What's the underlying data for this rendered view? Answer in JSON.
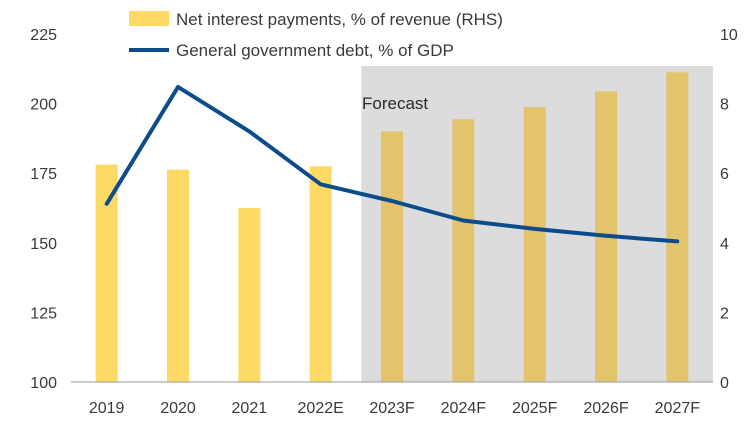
{
  "chart_data": {
    "type": "bar+line",
    "categories": [
      "2019",
      "2020",
      "2021",
      "2022E",
      "2023F",
      "2024F",
      "2025F",
      "2026F",
      "2027F"
    ],
    "series": [
      {
        "name": "Net interest payments, % of revenue (RHS)",
        "kind": "bar",
        "axis": "right",
        "color": "#FFD966",
        "values": [
          6.25,
          6.1,
          5.0,
          6.2,
          7.2,
          7.55,
          7.9,
          8.35,
          8.9
        ]
      },
      {
        "name": "General government debt, % of GDP",
        "kind": "line",
        "axis": "left",
        "color": "#0D4C8B",
        "values": [
          164,
          206,
          190,
          171,
          165,
          158,
          155,
          152.5,
          150.5
        ]
      }
    ],
    "left_axis": {
      "min": 100,
      "max": 225,
      "ticks": [
        "100",
        "125",
        "150",
        "175",
        "200",
        "225"
      ]
    },
    "right_axis": {
      "min": 0,
      "max": 10,
      "ticks": [
        "0",
        "2",
        "4",
        "6",
        "8",
        "10"
      ]
    },
    "forecast": {
      "label": "Forecast",
      "start_category": "2023F",
      "end_category": "2027F",
      "shade_color": "#DCDCDC",
      "bar_color": "#E3C36B"
    },
    "legend_position": "top-center",
    "grid": false
  }
}
